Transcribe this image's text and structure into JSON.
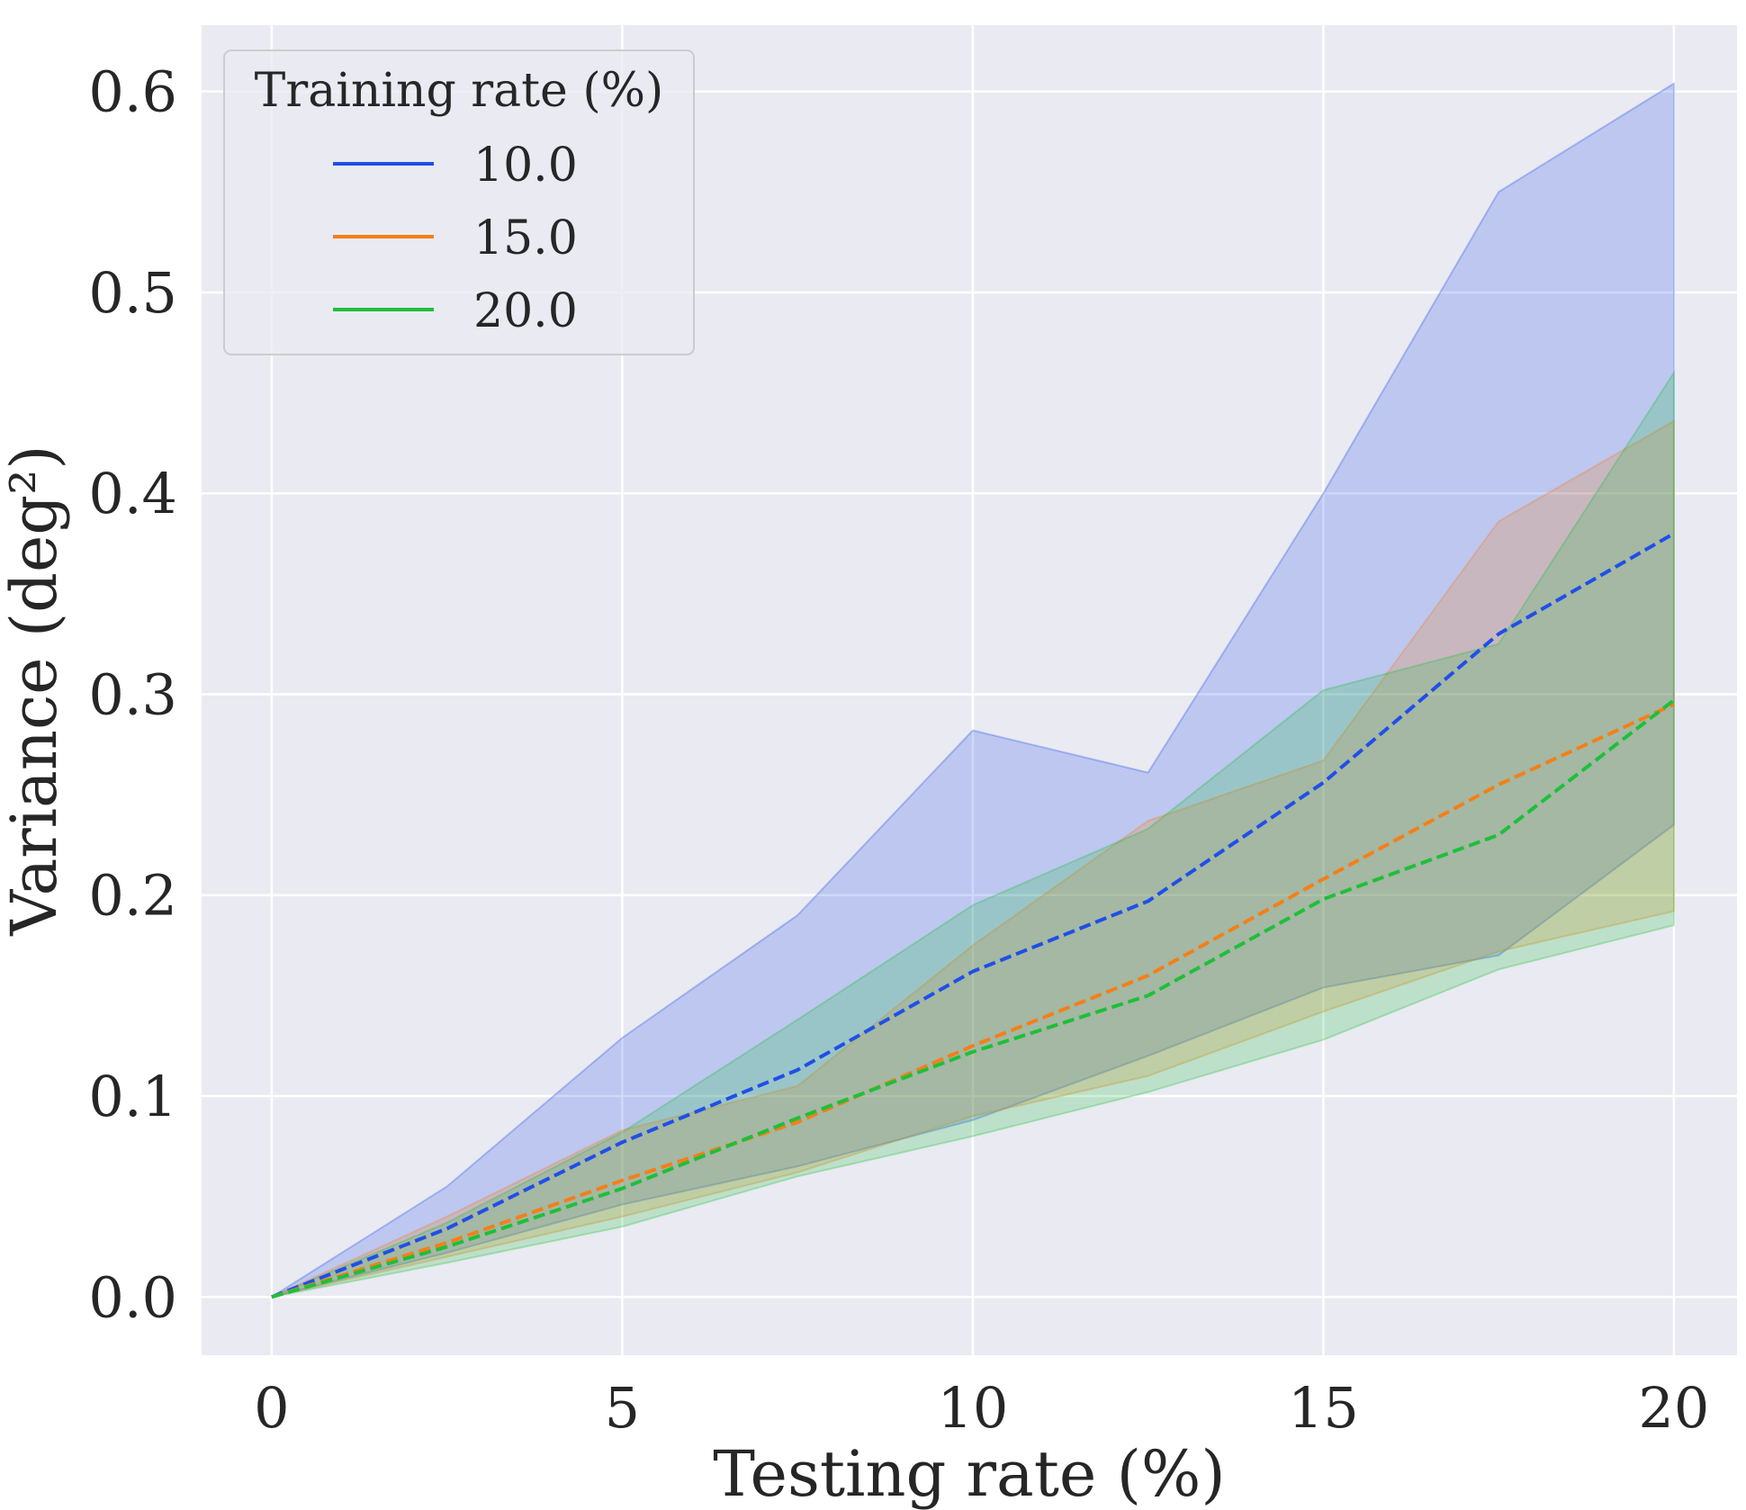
{
  "chart_data": {
    "type": "line",
    "title": "",
    "xlabel": "Testing rate (%)",
    "ylabel": "Variance (deg²)",
    "xlim": [
      -1,
      20.9
    ],
    "ylim": [
      -0.029,
      0.633
    ],
    "xticks": [
      "0",
      "5",
      "10",
      "15",
      "20"
    ],
    "xtick_values": [
      0,
      5,
      10,
      15,
      20
    ],
    "yticks": [
      "0.0",
      "0.1",
      "0.2",
      "0.3",
      "0.4",
      "0.5",
      "0.6"
    ],
    "ytick_values": [
      0.0,
      0.1,
      0.2,
      0.3,
      0.4,
      0.5,
      0.6
    ],
    "grid": true,
    "legend": {
      "title": "Training rate (%)",
      "position": "top-left"
    },
    "x": [
      0,
      2.5,
      5,
      7.5,
      10,
      12.5,
      15,
      17.5,
      20
    ],
    "series": [
      {
        "name": "10.0",
        "color": "#1f4fe8",
        "values": [
          0.0,
          0.034,
          0.077,
          0.113,
          0.162,
          0.197,
          0.256,
          0.33,
          0.38
        ],
        "lower": [
          0.0,
          0.022,
          0.046,
          0.065,
          0.088,
          0.12,
          0.154,
          0.17,
          0.235
        ],
        "upper": [
          0.0,
          0.055,
          0.129,
          0.19,
          0.282,
          0.261,
          0.4,
          0.55,
          0.604
        ]
      },
      {
        "name": "15.0",
        "color": "#f57f17",
        "values": [
          0.0,
          0.027,
          0.058,
          0.087,
          0.125,
          0.16,
          0.208,
          0.255,
          0.295
        ],
        "lower": [
          0.0,
          0.02,
          0.04,
          0.062,
          0.09,
          0.11,
          0.142,
          0.172,
          0.192
        ],
        "upper": [
          0.0,
          0.04,
          0.083,
          0.105,
          0.175,
          0.237,
          0.267,
          0.386,
          0.436
        ]
      },
      {
        "name": "20.0",
        "color": "#1fbf3a",
        "values": [
          0.0,
          0.025,
          0.054,
          0.089,
          0.122,
          0.15,
          0.198,
          0.23,
          0.297
        ],
        "lower": [
          0.0,
          0.017,
          0.035,
          0.06,
          0.08,
          0.102,
          0.128,
          0.163,
          0.185
        ],
        "upper": [
          0.0,
          0.037,
          0.082,
          0.138,
          0.195,
          0.233,
          0.302,
          0.325,
          0.46
        ]
      }
    ]
  }
}
